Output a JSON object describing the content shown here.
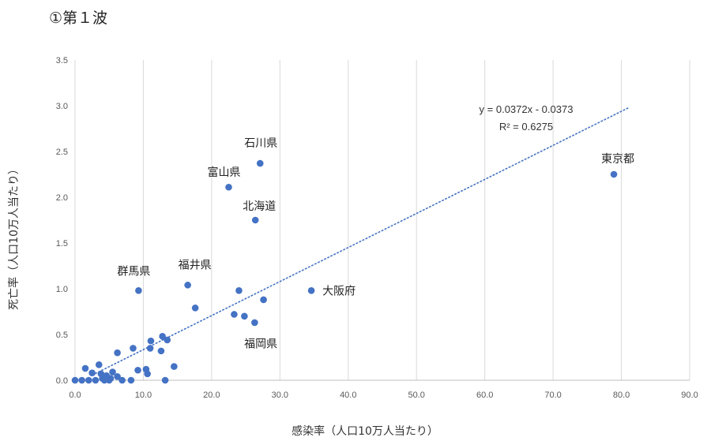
{
  "title": "①第１波",
  "chart_data": {
    "type": "scatter",
    "xlabel": "感染率（人口10万人当たり）",
    "ylabel": "死亡率（人口10万人当たり）",
    "xlim": [
      0,
      90
    ],
    "ylim": [
      0,
      3.5
    ],
    "x_ticks": [
      "0.0",
      "10.0",
      "20.0",
      "30.0",
      "40.0",
      "50.0",
      "60.0",
      "70.0",
      "80.0",
      "90.0"
    ],
    "y_ticks": [
      "0.0",
      "0.5",
      "1.0",
      "1.5",
      "2.0",
      "2.5",
      "3.0",
      "3.5"
    ],
    "grid": "vertical",
    "marker_color": "#4472C4",
    "trendline": {
      "type": "linear",
      "slope": 0.0372,
      "intercept": -0.0373,
      "x_range": [
        3,
        81
      ],
      "equation": "y = 0.0372x - 0.0373",
      "r2": "R² = 0.6275",
      "style": "dotted"
    },
    "points": [
      {
        "x": 0.0,
        "y": 0.0
      },
      {
        "x": 1.0,
        "y": 0.0
      },
      {
        "x": 1.5,
        "y": 0.13
      },
      {
        "x": 2.0,
        "y": 0.0
      },
      {
        "x": 2.5,
        "y": 0.08
      },
      {
        "x": 3.0,
        "y": 0.0
      },
      {
        "x": 3.5,
        "y": 0.17
      },
      {
        "x": 3.8,
        "y": 0.07
      },
      {
        "x": 4.0,
        "y": 0.02
      },
      {
        "x": 4.3,
        "y": 0.0
      },
      {
        "x": 4.6,
        "y": 0.05
      },
      {
        "x": 5.0,
        "y": 0.0
      },
      {
        "x": 5.2,
        "y": 0.02
      },
      {
        "x": 5.5,
        "y": 0.09
      },
      {
        "x": 6.2,
        "y": 0.04
      },
      {
        "x": 6.2,
        "y": 0.3
      },
      {
        "x": 6.9,
        "y": 0.0
      },
      {
        "x": 8.2,
        "y": 0.0
      },
      {
        "x": 8.5,
        "y": 0.35
      },
      {
        "x": 9.2,
        "y": 0.11
      },
      {
        "x": 10.4,
        "y": 0.12
      },
      {
        "x": 10.6,
        "y": 0.07
      },
      {
        "x": 11.0,
        "y": 0.35
      },
      {
        "x": 11.1,
        "y": 0.43
      },
      {
        "x": 12.6,
        "y": 0.32
      },
      {
        "x": 12.8,
        "y": 0.48
      },
      {
        "x": 13.2,
        "y": 0.0
      },
      {
        "x": 13.5,
        "y": 0.44
      },
      {
        "x": 14.5,
        "y": 0.15
      },
      {
        "x": 17.6,
        "y": 0.79
      },
      {
        "x": 23.3,
        "y": 0.72
      },
      {
        "x": 24.8,
        "y": 0.7
      },
      {
        "x": 26.3,
        "y": 0.63
      },
      {
        "x": 27.6,
        "y": 0.88
      },
      {
        "x": 9.3,
        "y": 0.98,
        "label": "群馬県"
      },
      {
        "x": 16.5,
        "y": 1.04,
        "label": "福井県"
      },
      {
        "x": 24.0,
        "y": 0.98
      },
      {
        "x": 34.6,
        "y": 0.98,
        "label": "大阪府"
      },
      {
        "x": 22.5,
        "y": 2.11,
        "label": "富山県"
      },
      {
        "x": 27.1,
        "y": 2.37,
        "label": "石川県"
      },
      {
        "x": 26.4,
        "y": 1.75,
        "label": "北海道"
      },
      {
        "x": 78.9,
        "y": 2.25,
        "label": "東京都"
      }
    ],
    "annotations": [
      {
        "text": "福岡県"
      }
    ]
  }
}
